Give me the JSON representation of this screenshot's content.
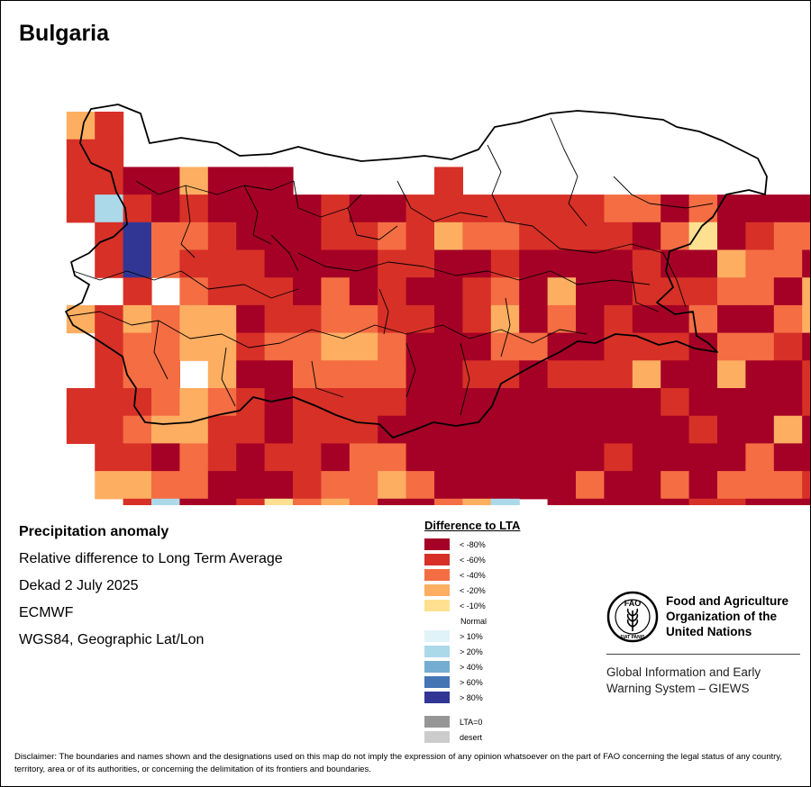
{
  "title": "Bulgaria",
  "info": {
    "heading": "Precipitation anomaly",
    "subtitle": "Relative difference to Long Term Average",
    "period": "Dekad 2 July 2025",
    "source": "ECMWF",
    "projection": "WGS84, Geographic Lat/Lon"
  },
  "colors": {
    "lt80": "#a50026",
    "lt60": "#d73027",
    "lt40": "#f46d43",
    "lt20": "#fdae61",
    "lt10": "#fee090",
    "gt10": "#e0f3f8",
    "gt20": "#abd9e9",
    "gt40": "#74add1",
    "gt60": "#4575b4",
    "gt80": "#313695",
    "lta0": "#969696",
    "desert": "#cccccc"
  },
  "legend": {
    "title": "Difference to LTA",
    "dry": [
      {
        "key": "lt80",
        "label": "< -80%"
      },
      {
        "key": "lt60",
        "label": "< -60%"
      },
      {
        "key": "lt40",
        "label": "< -40%"
      },
      {
        "key": "lt20",
        "label": "< -20%"
      },
      {
        "key": "lt10",
        "label": "< -10%"
      }
    ],
    "normal_label": "Normal",
    "wet": [
      {
        "key": "gt10",
        "label": "> 10%"
      },
      {
        "key": "gt20",
        "label": "> 20%"
      },
      {
        "key": "gt40",
        "label": "> 40%"
      },
      {
        "key": "gt60",
        "label": "> 60%"
      },
      {
        "key": "gt80",
        "label": "> 80%"
      }
    ],
    "extra": [
      {
        "key": "lta0",
        "label": "LTA=0"
      },
      {
        "key": "desert",
        "label": "desert"
      }
    ]
  },
  "fao": {
    "logo_text": "FAO",
    "logo_motto": "FIAT PANIS",
    "name_line1": "Food and Agriculture",
    "name_line2": "Organization of the",
    "name_line3": "United Nations",
    "system_line1": "Global Information and Early",
    "system_line2": "Warning System – GIEWS"
  },
  "disclaimer": "Disclaimer: The boundaries and names shown and the designations used on this map do not imply the expression of any opinion whatsoever on the part of FAO concerning the legal status of any country, territory, area or of its authorities, or concerning the delimitation of its frontiers and boundaries.",
  "grid_legend": {
    "5": "lt80",
    "6": "lt60",
    "4": "lt40",
    "3": "lt20",
    "2": "lt10",
    "0": "normal",
    "a": "gt10",
    "b": "gt20",
    "c": "gt40",
    "d": "gt60",
    "e": "gt80"
  },
  "anomaly_grid": [
    "..36..............................3343333...",
    "..66..............................3644333...",
    "..66553555.....6..............2466400.......",
    "..6b65655556556666666445455554444aa434232c..",
    "...6e4465556646344666654256446566aa432234...",
    "...6e46665555665565555655344556646444436....",
    "....60466654565564535566644534340a344366....",
    "..3634335664466563545655455433344364664.....",
    "...6443364433455544556665446544334444360....",
    "...6440355444455665666355355666554556660....",
    "..66643465666655555555565555665555555555....",
    "..664336656665555555555565535565555555555...",
    "...66546566544555555565555455535555555555...",
    "...3344555644345555545545444655555555555....",
    "....6b55624345543b055555665554..............",
    "....6b55622345543b055555665554..............",
    "....36666543466433336555555556..............",
    "....33666546664533356555565566.............."
  ]
}
